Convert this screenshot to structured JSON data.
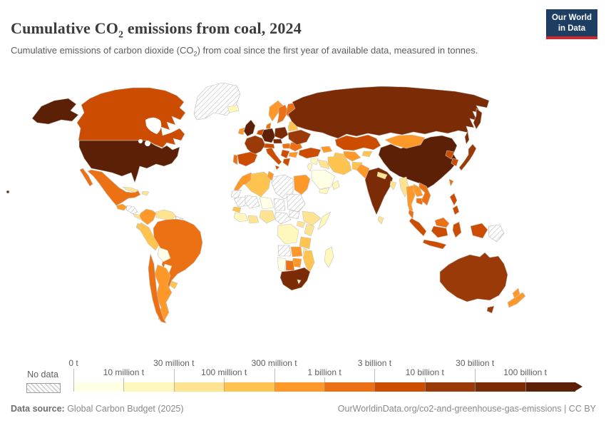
{
  "header": {
    "title": {
      "prefix": "Cumulative CO",
      "sub": "2",
      "suffix": " emissions from coal, 2024"
    },
    "subtitle": {
      "prefix": "Cumulative emissions of carbon dioxide (CO",
      "sub": "2",
      "suffix": ") from coal since the first year of available data, measured in tonnes."
    },
    "logo": {
      "line1": "Our World",
      "line2": "in Data",
      "bg": "#1d3d63",
      "accent": "#d2262e"
    }
  },
  "legend": {
    "no_data_label": "No data",
    "ticks_top": [
      "0 t",
      "30 million t",
      "300 million t",
      "3 billion t",
      "30 billion t"
    ],
    "ticks_bottom": [
      "10 million t",
      "100 million t",
      "1 billion t",
      "10 billion t",
      "100 billion t"
    ],
    "colors": [
      "#ffffe5",
      "#fff7bc",
      "#fee391",
      "#fec44f",
      "#fe9929",
      "#ec7014",
      "#cc4c02",
      "#9a3a08",
      "#7b2b06",
      "#5b2005"
    ]
  },
  "footer": {
    "source_label": "Data source:",
    "source_value": " Global Carbon Budget (2025)",
    "link": "OurWorldinData.org/co2-and-greenhouse-gas-emissions",
    "separator": " | ",
    "license": "CC BY"
  },
  "chart_data": {
    "type": "choropleth",
    "title": "Cumulative CO2 emissions from coal, 2024",
    "unit": "tonnes",
    "year": 2024,
    "legend_position": "bottom",
    "bin_labels": [
      "0-10 million t",
      "10-30 million t",
      "30-100 million t",
      "100-300 million t",
      "300 million-1 billion t",
      "1-3 billion t",
      "3-10 billion t",
      "10-30 billion t",
      "30-100 billion t",
      "100+ billion t"
    ],
    "values": {
      "united-states": 9,
      "china": 9,
      "germany": 9,
      "united-kingdom": 9,
      "russia": 8,
      "india": 8,
      "poland": 8,
      "south-africa": 8,
      "czechia": 8,
      "france": 7,
      "ukraine": 7,
      "australia": 7,
      "japan": 7,
      "canada": 6,
      "spain": 6,
      "italy": 6,
      "turkey": 6,
      "kazakhstan": 6,
      "indonesia": 6,
      "south-korea": 6,
      "north-korea": 6,
      "greece": 6,
      "benelux": 6,
      "austria-switzerland": 6,
      "serbia": 6,
      "philippines": 6,
      "mexico": 5,
      "brazil": 5,
      "chile": 5,
      "sweden": 5,
      "finland": 5,
      "romania": 5,
      "vietnam": 5,
      "malaysia": 5,
      "botswana": 5,
      "hungary": 5,
      "portugal": 5,
      "denmark": 5,
      "cambodia": 5,
      "taiwan": 5,
      "mongolia": 4,
      "colombia": 4,
      "argentina": 4,
      "egypt": 4,
      "morocco": 4,
      "zimbabwe": 4,
      "ireland": 4,
      "norway": 4,
      "new-zealand": 4,
      "thailand": 4,
      "pakistan": 4,
      "zambia": 4,
      "uzbekistan": 4,
      "laos": 4,
      "georgia-azerbaijan": 4,
      "tunisia": 4,
      "bulgaria": 4,
      "guatemala": 4,
      "algeria": 3,
      "iran": 3,
      "belarus": 3,
      "mozambique": 3,
      "tanzania": 3,
      "afghanistan": 3,
      "peru": 3,
      "ecuador": 3,
      "senegal": 3,
      "baltic-states": 3,
      "turkmenistan": 3,
      "kyrgyzstan": 3,
      "uruguay": 3,
      "venezuela": 2,
      "nigeria": 2,
      "ethiopia": 2,
      "kenya": 2,
      "bangladesh": 2,
      "myanmar": 2,
      "iraq": 2,
      "sri-lanka": 2,
      "ghana": 2,
      "uganda": 2,
      "nepal": 2,
      "malawi": 2,
      "panama": 2,
      "cuba": 2,
      "hispaniola": 2,
      "iceland": 1,
      "madagascar": 1,
      "dr-congo": 1,
      "yemen": 1,
      "oman": 1,
      "syria": 1,
      "jordan": 1,
      "lesotho": 1,
      "guinea": 1,
      "somalia": 1,
      "bolivia": 0,
      "paraguay": 0,
      "namibia": 0,
      "niger": 0,
      "saudi-arabia": 0
    },
    "no_data": [
      "greenland",
      "libya",
      "mauritania",
      "mali",
      "chad",
      "sudan",
      "south-sudan",
      "central-african-republic",
      "angola",
      "papua-new-guinea",
      "guyana",
      "western-sahara",
      "honduras-nicaragua"
    ]
  }
}
